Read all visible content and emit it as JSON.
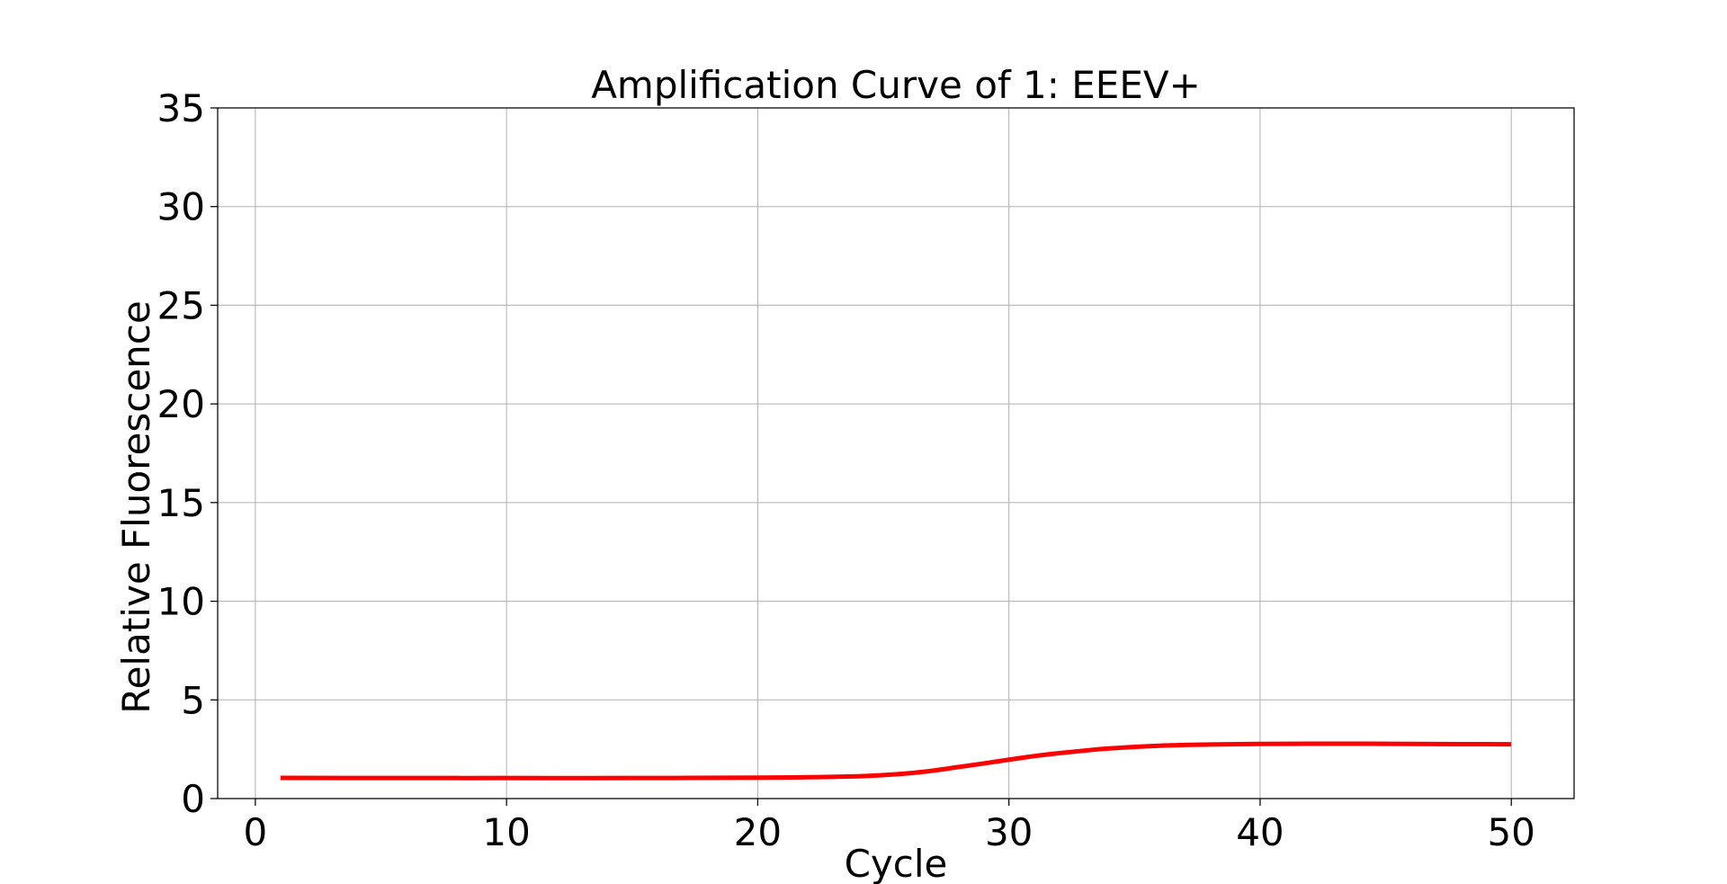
{
  "chart_data": {
    "type": "line",
    "title": "Amplification Curve of 1: EEEV+",
    "xlabel": "Cycle",
    "ylabel": "Relative Fluorescence",
    "xlim": [
      -1.5,
      52.5
    ],
    "ylim": [
      0,
      35
    ],
    "x_ticks": [
      0,
      10,
      20,
      30,
      40,
      50
    ],
    "y_ticks": [
      0,
      5,
      10,
      15,
      20,
      25,
      30,
      35
    ],
    "grid": true,
    "series": [
      {
        "color": "#ff0000",
        "x": [
          1,
          5,
          10,
          15,
          20,
          22,
          24,
          25,
          26,
          27,
          28,
          29,
          30,
          31,
          32,
          33,
          34,
          36,
          38,
          40,
          42,
          44,
          46,
          48,
          50
        ],
        "y": [
          1.05,
          1.04,
          1.04,
          1.04,
          1.06,
          1.08,
          1.13,
          1.19,
          1.28,
          1.42,
          1.6,
          1.78,
          1.97,
          2.15,
          2.3,
          2.43,
          2.54,
          2.68,
          2.74,
          2.77,
          2.78,
          2.78,
          2.77,
          2.76,
          2.75
        ]
      }
    ]
  }
}
